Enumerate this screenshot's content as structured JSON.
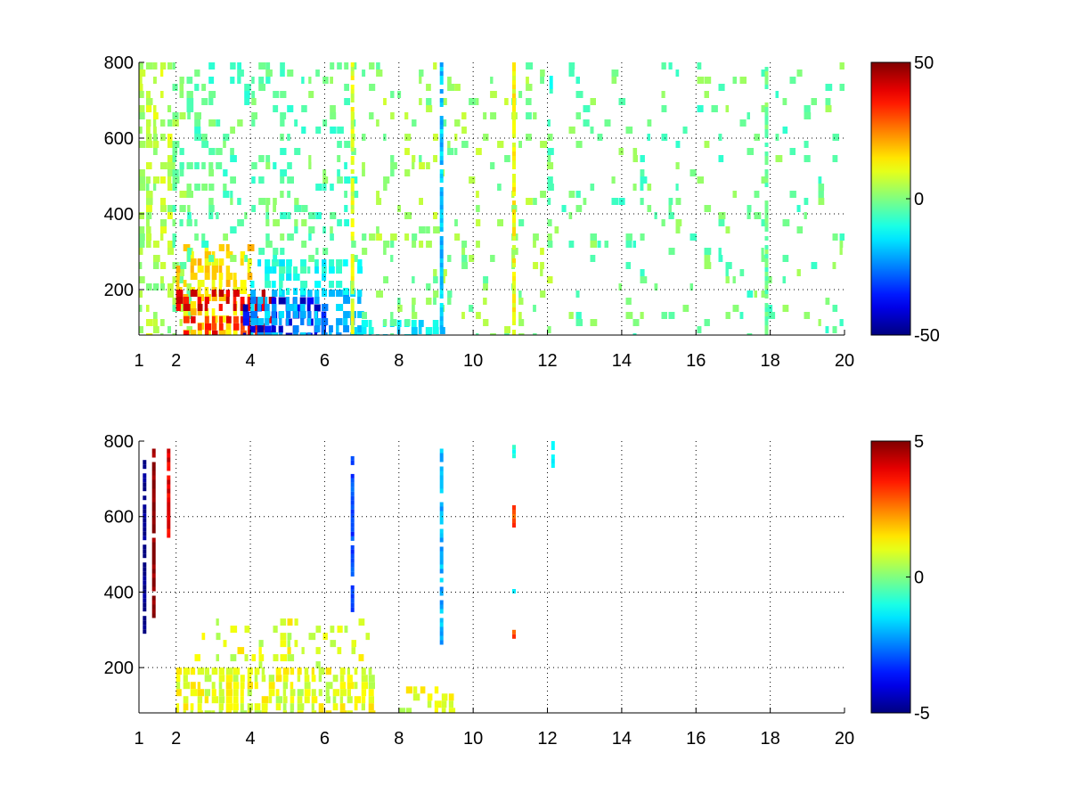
{
  "chart_data": [
    {
      "type": "heatmap",
      "xlim": [
        1,
        20
      ],
      "ylim": [
        80,
        800
      ],
      "x_ticks": [
        1,
        2,
        4,
        6,
        8,
        10,
        12,
        14,
        16,
        18,
        20
      ],
      "y_ticks": [
        200,
        400,
        600,
        800
      ],
      "x_tick_labels": [
        "1",
        "2",
        "4",
        "6",
        "8",
        "10",
        "12",
        "14",
        "16",
        "18",
        "20"
      ],
      "y_tick_labels": [
        "200",
        "400",
        "600",
        "800"
      ],
      "grid": true,
      "colormap": "jet",
      "clim": [
        -50,
        50
      ],
      "colorbar_ticks": [
        50,
        0,
        -50
      ],
      "colorbar_tick_labels": [
        "50",
        "0",
        "-50"
      ],
      "title": "",
      "xlabel": "",
      "ylabel": "",
      "regions": [
        {
          "x": [
            1.0,
            1.9
          ],
          "y": [
            80,
            800
          ],
          "value": 5,
          "density": 0.5
        },
        {
          "x": [
            1.9,
            2.3
          ],
          "y": [
            80,
            800
          ],
          "value": 0,
          "density": 0.5
        },
        {
          "x": [
            2.0,
            4.0
          ],
          "y": [
            80,
            320
          ],
          "value": 15,
          "density": 0.6
        },
        {
          "x": [
            2.2,
            4.6
          ],
          "y": [
            80,
            130
          ],
          "value": 35,
          "density": 0.7
        },
        {
          "x": [
            2.0,
            4.6
          ],
          "y": [
            150,
            200
          ],
          "value": 40,
          "density": 0.6
        },
        {
          "x": [
            3.8,
            6.0
          ],
          "y": [
            80,
            180
          ],
          "value": -40,
          "density": 0.6
        },
        {
          "x": [
            4.0,
            7.0
          ],
          "y": [
            80,
            200
          ],
          "value": -20,
          "density": 0.7
        },
        {
          "x": [
            4.0,
            7.0
          ],
          "y": [
            200,
            280
          ],
          "value": -10,
          "density": 0.6
        },
        {
          "x": [
            2.3,
            6.8
          ],
          "y": [
            280,
            800
          ],
          "value": -3,
          "density": 0.3
        },
        {
          "x": [
            6.8,
            9.2
          ],
          "y": [
            80,
            120
          ],
          "value": -15,
          "density": 0.6
        },
        {
          "x": [
            7.0,
            12.0
          ],
          "y": [
            80,
            800
          ],
          "value": 2,
          "density": 0.18
        },
        {
          "x": [
            12.0,
            20.0
          ],
          "y": [
            80,
            800
          ],
          "value": -2,
          "density": 0.12
        }
      ],
      "stripes": [
        {
          "x": 6.75,
          "y": [
            80,
            800
          ],
          "value": 10
        },
        {
          "x": 9.15,
          "y": [
            100,
            800
          ],
          "value": -18
        },
        {
          "x": 11.1,
          "y": [
            80,
            800
          ],
          "value": 12
        },
        {
          "x": 12.1,
          "y": [
            720,
            800
          ],
          "value": -10
        },
        {
          "x": 17.9,
          "y": [
            80,
            800
          ],
          "value": -2
        }
      ]
    },
    {
      "type": "heatmap",
      "xlim": [
        1,
        20
      ],
      "ylim": [
        80,
        800
      ],
      "x_ticks": [
        1,
        2,
        4,
        6,
        8,
        10,
        12,
        14,
        16,
        18,
        20
      ],
      "y_ticks": [
        200,
        400,
        600,
        800
      ],
      "x_tick_labels": [
        "1",
        "2",
        "4",
        "6",
        "8",
        "10",
        "12",
        "14",
        "16",
        "18",
        "20"
      ],
      "y_tick_labels": [
        "200",
        "400",
        "600",
        "800"
      ],
      "grid": true,
      "colormap": "jet",
      "clim": [
        -5,
        5
      ],
      "colorbar_ticks": [
        5,
        0,
        -5
      ],
      "colorbar_tick_labels": [
        "5",
        "0",
        "-5"
      ],
      "title": "",
      "xlabel": "",
      "ylabel": "",
      "regions": [
        {
          "x": [
            2.0,
            7.2
          ],
          "y": [
            80,
            200
          ],
          "value": 1,
          "density": 0.85
        },
        {
          "x": [
            2.5,
            7.2
          ],
          "y": [
            200,
            330
          ],
          "value": 1,
          "density": 0.25
        },
        {
          "x": [
            8.0,
            9.5
          ],
          "y": [
            80,
            150
          ],
          "value": 1,
          "density": 0.5
        }
      ],
      "stripes": [
        {
          "x": 1.4,
          "y": [
            320,
            780
          ],
          "value": 5
        },
        {
          "x": 1.15,
          "y": [
            300,
            750
          ],
          "value": -5
        },
        {
          "x": 1.8,
          "y": [
            550,
            780
          ],
          "value": 4
        },
        {
          "x": 6.75,
          "y": [
            350,
            760
          ],
          "value": -3
        },
        {
          "x": 9.15,
          "y": [
            270,
            780
          ],
          "value": -2
        },
        {
          "x": 11.1,
          "y": [
            280,
            300
          ],
          "value": 3
        },
        {
          "x": 11.1,
          "y": [
            580,
            630
          ],
          "value": 3
        },
        {
          "x": 11.1,
          "y": [
            400,
            420
          ],
          "value": -1
        },
        {
          "x": 11.1,
          "y": [
            760,
            790
          ],
          "value": -1
        },
        {
          "x": 12.15,
          "y": [
            730,
            800
          ],
          "value": -1
        }
      ]
    }
  ]
}
